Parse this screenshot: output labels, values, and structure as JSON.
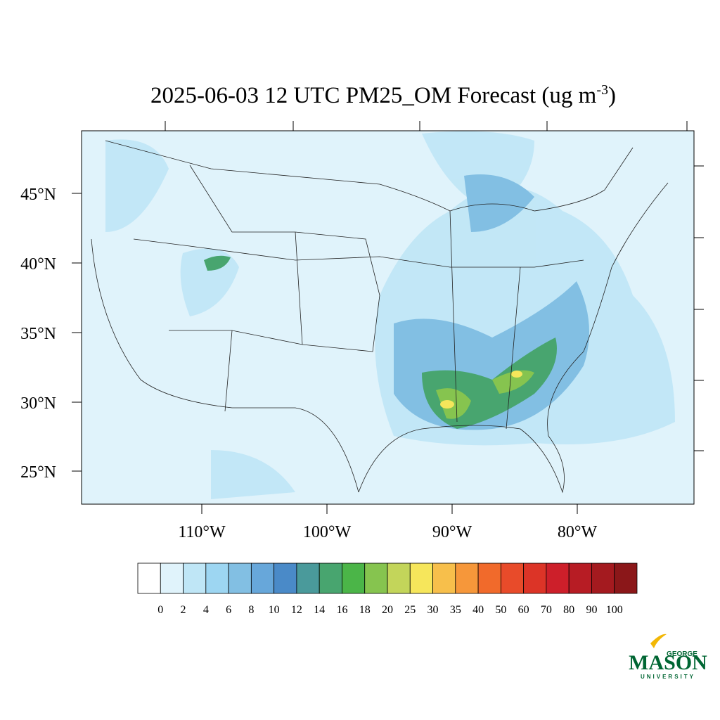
{
  "title": {
    "text": "2025-06-03 12 UTC PM25_OM Forecast (ug m",
    "superscript": "-3",
    "suffix": ")"
  },
  "lat_labels": [
    "45°N",
    "40°N",
    "35°N",
    "30°N",
    "25°N"
  ],
  "lon_labels": [
    "110°W",
    "100°W",
    "90°W",
    "80°W"
  ],
  "colorbar": {
    "levels": [
      0,
      2,
      4,
      6,
      8,
      10,
      12,
      14,
      16,
      18,
      20,
      25,
      30,
      35,
      40,
      50,
      60,
      70,
      80,
      90,
      100
    ],
    "colors": [
      "#ffffff",
      "#e0f3fb",
      "#bfe6f6",
      "#9dd6f2",
      "#82bfe3",
      "#67a7da",
      "#4a8ac8",
      "#4a9a9b",
      "#48a56f",
      "#4bb548",
      "#86c44f",
      "#c3d55a",
      "#f6e65b",
      "#f7bf4b",
      "#f6973a",
      "#f16a2b",
      "#e84b2a",
      "#dc3427",
      "#cd1f2a",
      "#b71c24",
      "#a41a1f",
      "#8b1719"
    ]
  },
  "logo": {
    "top": "GEORGE",
    "main": "MASON",
    "bottom": "UNIVERSITY"
  }
}
